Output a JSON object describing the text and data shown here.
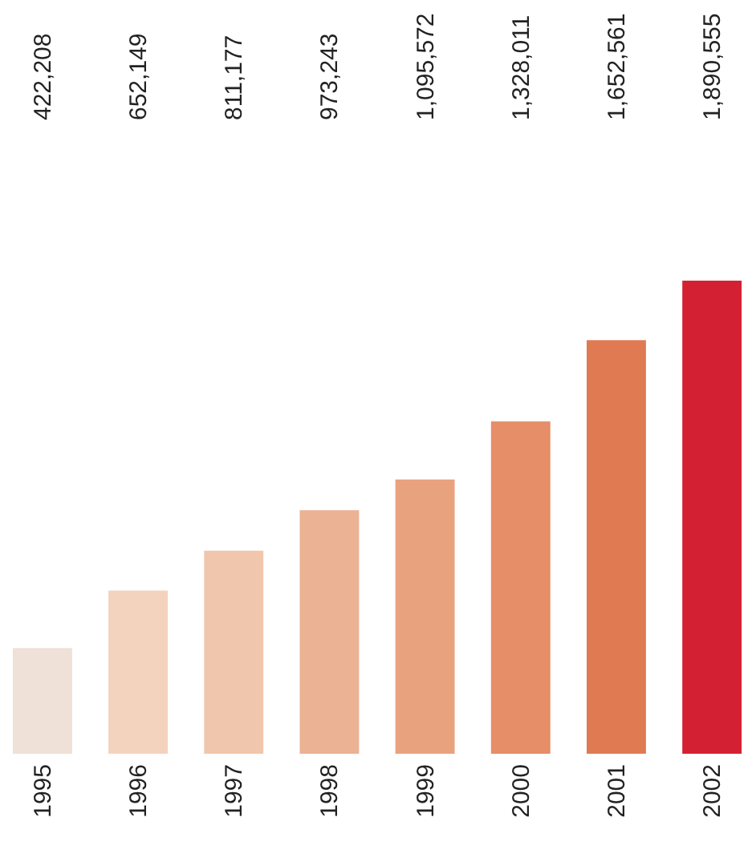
{
  "chart_data": {
    "type": "bar",
    "categories": [
      "1995",
      "1996",
      "1997",
      "1998",
      "1999",
      "2000",
      "2001",
      "2002"
    ],
    "values": [
      422208,
      652149,
      811177,
      973243,
      1095572,
      1328011,
      1652561,
      1890555
    ],
    "colors": [
      "#efe0d8",
      "#f3d2be",
      "#f0c6ac",
      "#ebb294",
      "#e9a27e",
      "#e58e68",
      "#e07a52",
      "#d42033"
    ],
    "value_labels": [
      "422,208",
      "652,149",
      "811,177",
      "973,243",
      "1,095,572",
      "1,328,011",
      "1,652,561",
      "1,890,555"
    ],
    "tick_labels": "x",
    "grid": false
  }
}
